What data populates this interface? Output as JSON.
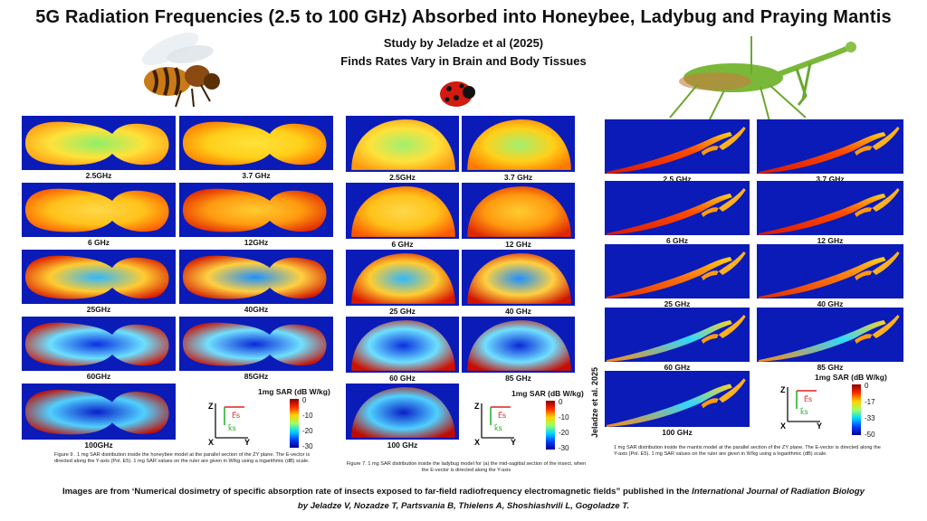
{
  "header": {
    "title": "5G Radiation Frequencies (2.5 to 100 GHz) Absorbed into Honeybee, Ladybug and Praying Mantis",
    "line1": "Study by Jeladze et al (2025)",
    "line2": "Finds Rates Vary in Brain and Body Tissues"
  },
  "honeybee": {
    "labels": [
      "2.5GHz",
      "3.7 GHz",
      "6 GHz",
      "12GHz",
      "25GHz",
      "40GHz",
      "60GHz",
      "85GHz",
      "100GHz"
    ],
    "caption": "Figure 9 . 1 mg SAR distribution inside the honeybee model at the parallel section of the ZY plane. The E-vector is directed along the Y-axis (Pol. E5). 1 mg SAR values on the ruler are given in W/kg using a logarithmic (dB) scale.",
    "colorbar": {
      "title": "1mg SAR (dB W/kg)",
      "ticks": [
        "0",
        "-10",
        "-20",
        "-30"
      ]
    }
  },
  "ladybug": {
    "labels": [
      "2.5GHz",
      "3.7 GHz",
      "6 GHz",
      "12 GHz",
      "25 GHz",
      "40 GHz",
      "60 GHz",
      "85 GHz",
      "100 GHz"
    ],
    "caption": "Figure 7. 1 mg SAR distribution inside the ladybug model for (a) the mid-sagittal section of the insect, when the E-vector is directed along the Y-axis",
    "colorbar": {
      "title": "1mg SAR (dB W/kg)",
      "ticks": [
        "0",
        "-10",
        "-20",
        "-30"
      ]
    }
  },
  "mantis": {
    "labels": [
      "2.5 GHz",
      "3.7 GHz",
      "6 GHz",
      "12 GHz",
      "25 GHz",
      "40 GHz",
      "60 GHz",
      "85 GHz",
      "100 GHz"
    ],
    "caption": "1 mg SAR distribution inside the mantis model at the parallel section of the ZY plane. The E-vector is directed along the Y-axis (Pol. E5). 1 mg SAR values on the ruler are given in W/kg using a logarithmic (dB) scale.",
    "colorbar": {
      "title": "1mg SAR (dB W/kg)",
      "ticks": [
        "0",
        "-17",
        "-33",
        "-50"
      ]
    },
    "side_text": "Jeladze et al. 2025"
  },
  "axes": {
    "z": "Z",
    "x": "X",
    "y": "Y",
    "es": "E⃗s",
    "ks": "k⃗s"
  },
  "footer": {
    "line1_pre": "Images are from ‘Numerical dosimetry of specific absorption rate of insects exposed to far-field radiofrequency electromagnetic fields” published in the ",
    "line1_journal": "International Journal of Radiation Biology",
    "line2": "by Jeladze V, Nozadze T, Partsvania B, Thielens A, Shoshiashvili L, Gogoladze T."
  },
  "colors": {
    "field_blue": "#0a1bb8",
    "hot_red": "#d81800",
    "hot_orange": "#ff7a00",
    "warm_yellow": "#ffd21e",
    "cool_cyan": "#30d8ff",
    "cold_blue": "#0028e0"
  }
}
